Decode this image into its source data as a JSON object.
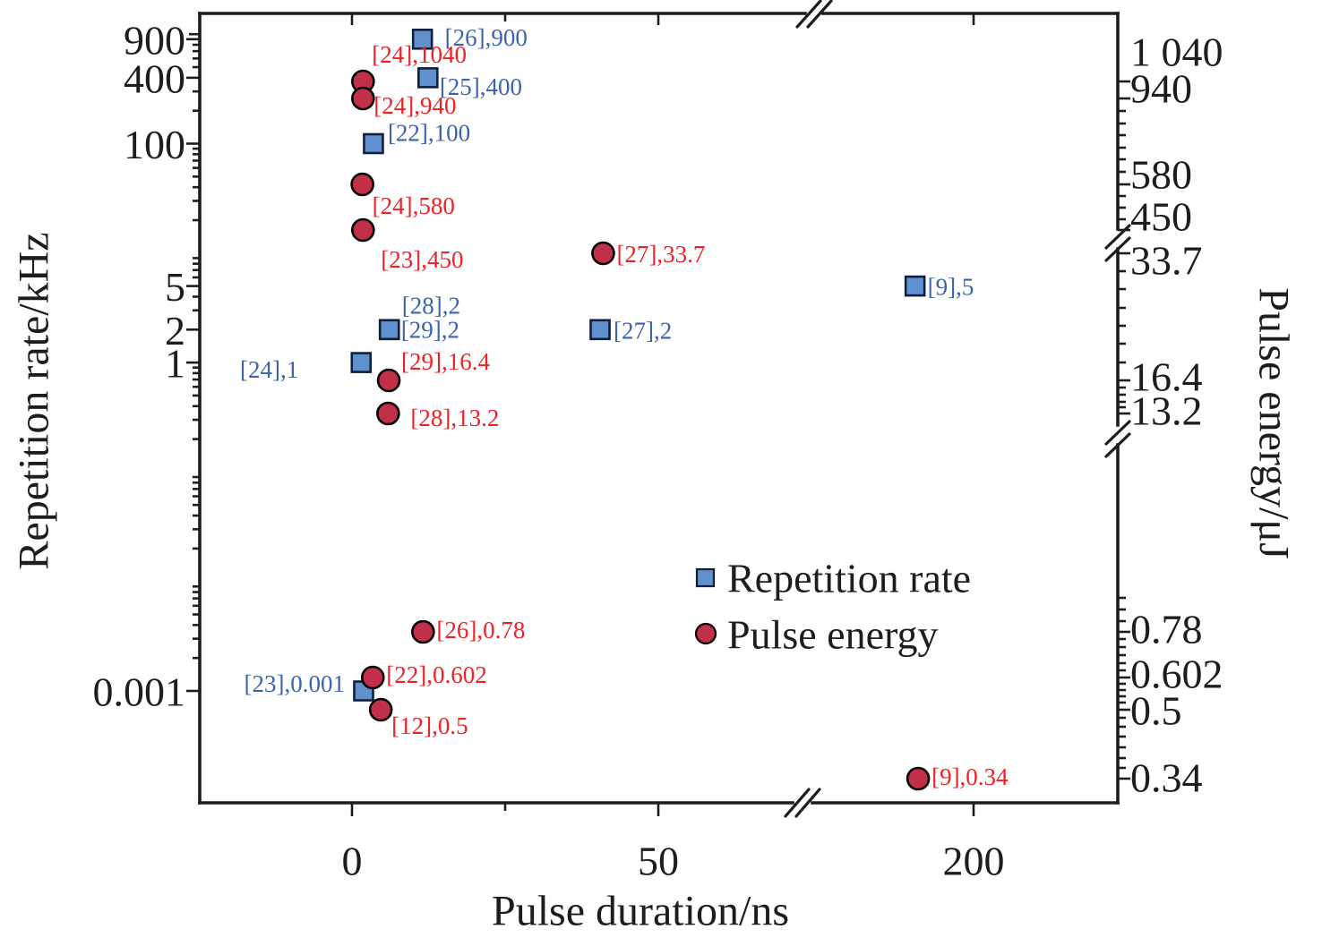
{
  "figure": {
    "background": "#ffffff"
  },
  "chart_data": {
    "type": "scatter",
    "title": "",
    "xlabel": "Pulse duration/ns",
    "ylabel_left": "Repetition rate/kHz",
    "ylabel_right": "Pulse energy/μJ",
    "x_axis": {
      "tick_labels": [
        "0",
        "50",
        "200"
      ],
      "tick_values": [
        0,
        50,
        200
      ],
      "minor_tick_values": [
        25
      ],
      "break_between": [
        75,
        150
      ]
    },
    "left_axis": {
      "scale": "log",
      "tick_labels": [
        "900",
        "400",
        "100",
        "5",
        "2",
        "1",
        "0.001"
      ],
      "tick_values": [
        900,
        400,
        100,
        5,
        2,
        1,
        0.001
      ]
    },
    "right_axis": {
      "scale": "log-broken",
      "tick_labels": [
        "1 040",
        "940",
        "580",
        "450",
        "33.7",
        "16.4",
        "13.2",
        "0.78",
        "0.602",
        "0.5",
        "0.34"
      ],
      "tick_values": [
        1040,
        940,
        580,
        450,
        33.7,
        16.4,
        13.2,
        0.78,
        0.602,
        0.5,
        0.34
      ],
      "breaks": [
        [
          450,
          33.7
        ],
        [
          13.2,
          0.78
        ]
      ]
    },
    "legend": {
      "position": "center-right",
      "entries": [
        {
          "label": "Repetition rate",
          "marker": "square"
        },
        {
          "label": "Pulse energy",
          "marker": "circle"
        }
      ]
    },
    "colors": {
      "square_fill": "#6090ce",
      "square_edge": "#10203c",
      "circle_fill": "#c22f49",
      "circle_edge": "#000000",
      "blue_label": "#3c63ae",
      "red_label": "#ee2226",
      "axis": "#1d1d1b"
    },
    "series": [
      {
        "name": "Repetition rate",
        "marker": "square",
        "axis": "left",
        "points": [
          {
            "ref": "[26]",
            "x_ns": 11.5,
            "value": 900,
            "label": "[26],900",
            "label_dx": 25,
            "label_dy": -3
          },
          {
            "ref": "[25]",
            "x_ns": 12.4,
            "value": 400,
            "label": "[25],400",
            "label_dx": 13,
            "label_dy": 9
          },
          {
            "ref": "[22]",
            "x_ns": 3.5,
            "value": 100,
            "label": "[22],100",
            "label_dx": 16,
            "label_dy": -13
          },
          {
            "ref": "[9]",
            "x_ns": 181,
            "value": 5,
            "label": "[9],5",
            "label_dx": 14,
            "label_dy": 0
          },
          {
            "ref": "[28]",
            "x_ns": 6.1,
            "value": 2,
            "label": "[28],2",
            "label_dx": 14,
            "label_dy": -28
          },
          {
            "ref": "[29]",
            "x_ns": 6.1,
            "value": 2,
            "label": "[29],2",
            "label_dx": 13,
            "label_dy": -1
          },
          {
            "ref": "[27]",
            "x_ns": 40.5,
            "value": 2,
            "label": "[27],2",
            "label_dx": 15,
            "label_dy": 0
          },
          {
            "ref": "[24]",
            "x_ns": 1.5,
            "value": 1,
            "label": "[24],1",
            "label_dx": -70,
            "label_dy": 7,
            "label_anchor": "end"
          },
          {
            "ref": "[23]",
            "x_ns": 1.9,
            "value": 0.001,
            "label": "[23],0.001",
            "label_dx": -21,
            "label_dy": -9,
            "label_anchor": "end"
          }
        ]
      },
      {
        "name": "Pulse energy",
        "marker": "circle",
        "axis": "right",
        "points": [
          {
            "ref": "[24]",
            "x_ns": 1.8,
            "value": 1040,
            "label": "[24],1040",
            "label_dx": 10,
            "label_dy": -31
          },
          {
            "ref": "[24]",
            "x_ns": 1.8,
            "value": 940,
            "label": "[24],940",
            "label_dx": 12,
            "label_dy": 7
          },
          {
            "ref": "[24]",
            "x_ns": 1.7,
            "value": 580,
            "label": "[24],580",
            "label_dx": 11,
            "label_dy": 23
          },
          {
            "ref": "[23]",
            "x_ns": 1.8,
            "value": 450,
            "label": "[23],450",
            "label_dx": 20,
            "label_dy": 32
          },
          {
            "ref": "[27]",
            "x_ns": 41,
            "value": 33.7,
            "label": "[27],33.7",
            "label_dx": 15,
            "label_dy": 0
          },
          {
            "ref": "[29]",
            "x_ns": 6,
            "value": 16.4,
            "label": "[29],16.4",
            "label_dx": 14,
            "label_dy": -22
          },
          {
            "ref": "[28]",
            "x_ns": 5.9,
            "value": 13.2,
            "label": "[28],13.2",
            "label_dx": 25,
            "label_dy": 4
          },
          {
            "ref": "[26]",
            "x_ns": 11.6,
            "value": 0.78,
            "label": "[26],0.78",
            "label_dx": 15,
            "label_dy": -3
          },
          {
            "ref": "[22]",
            "x_ns": 3.4,
            "value": 0.602,
            "label": "[22],0.602",
            "label_dx": 15,
            "label_dy": -4
          },
          {
            "ref": "[12]",
            "x_ns": 4.7,
            "value": 0.5,
            "label": "[12],0.5",
            "label_dx": 12,
            "label_dy": 17
          },
          {
            "ref": "[9]",
            "x_ns": 182,
            "value": 0.34,
            "label": "[9],0.34",
            "label_dx": 15,
            "label_dy": -3
          }
        ]
      }
    ]
  }
}
